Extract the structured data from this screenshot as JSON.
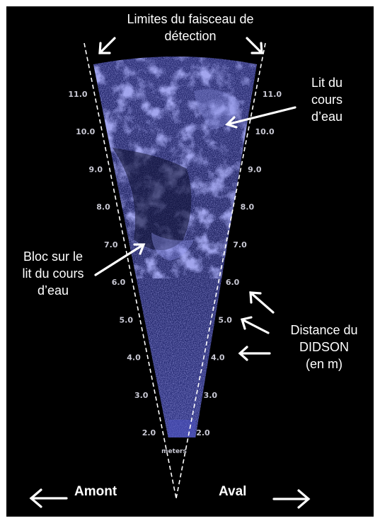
{
  "labels": {
    "beam_limits_line1": "Limites du faisceau de",
    "beam_limits_line2": "détection",
    "bed_line1": "Lit du",
    "bed_line2": "cours",
    "bed_line3": "d’eau",
    "boulder_line1": "Bloc sur le",
    "boulder_line2": "lit du cours",
    "boulder_line3": "d’eau",
    "distance_line1": "Distance du",
    "distance_line2": "DIDSON",
    "distance_line3": "(en m)",
    "upstream": "Amont",
    "downstream": "Aval",
    "units": "meters"
  },
  "range_ticks": [
    {
      "value": 2.0,
      "text": "2.0"
    },
    {
      "value": 3.0,
      "text": "3.0"
    },
    {
      "value": 4.0,
      "text": "4.0"
    },
    {
      "value": 5.0,
      "text": "5.0"
    },
    {
      "value": 6.0,
      "text": "6.0"
    },
    {
      "value": 7.0,
      "text": "7.0"
    },
    {
      "value": 8.0,
      "text": "8.0"
    },
    {
      "value": 9.0,
      "text": "9.0"
    },
    {
      "value": 10.0,
      "text": "10.0"
    },
    {
      "value": 11.0,
      "text": "11.0"
    }
  ],
  "colors": {
    "background": "#000000",
    "sonar_blue": "#3a3fa8",
    "annotation": "#ffffff",
    "tick_text": "#c9c9d4"
  }
}
